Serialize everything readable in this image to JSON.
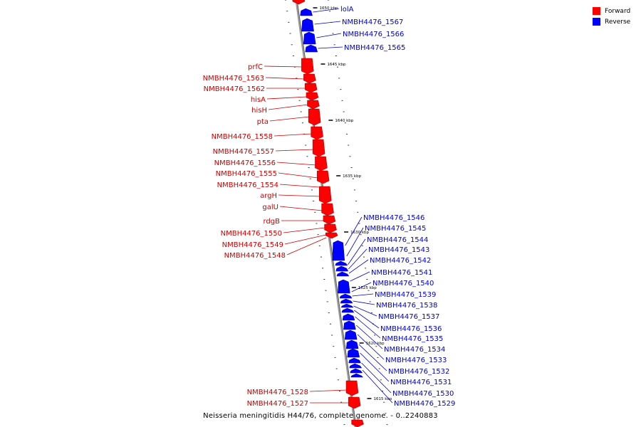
{
  "legend": {
    "forward_label": "Forward",
    "reverse_label": "Reverse",
    "forward_color": "#ff0000",
    "reverse_color": "#0000ff"
  },
  "caption": "Neisseria meningitidis H44/76, complete genome. - 0..2240883",
  "colors": {
    "forward": "#ff0000",
    "reverse": "#0000ff",
    "label_forward": "#cc0000",
    "label_reverse": "#0000cc",
    "backbone": "#888888"
  },
  "ticks": [
    "1650 kbp",
    "1645 kbp",
    "1640 kbp",
    "1635 kbp",
    "1630 kbp",
    "1625 kbp",
    "1620 kbp",
    "1615 kbp"
  ],
  "forward_genes": [
    "prfC",
    "NMBH4476_1563",
    "NMBH4476_1562",
    "hisA",
    "hisH",
    "pta",
    "NMBH4476_1558",
    "NMBH4476_1557",
    "NMBH4476_1556",
    "NMBH4476_1555",
    "NMBH4476_1554",
    "argH",
    "galU",
    "rdgB",
    "NMBH4476_1550",
    "NMBH4476_1549",
    "NMBH4476_1548",
    "NMBH4476_1528",
    "NMBH4476_1527"
  ],
  "reverse_genes": [
    "lolA",
    "NMBH4476_1567",
    "NMBH4476_1566",
    "NMBH4476_1565",
    "NMBH4476_1546",
    "NMBH4476_1545",
    "NMBH4476_1544",
    "NMBH4476_1543",
    "NMBH4476_1542",
    "NMBH4476_1541",
    "NMBH4476_1540",
    "NMBH4476_1539",
    "NMBH4476_1538",
    "NMBH4476_1537",
    "NMBH4476_1536",
    "NMBH4476_1535",
    "NMBH4476_1534",
    "NMBH4476_1533",
    "NMBH4476_1532",
    "NMBH4476_1531",
    "NMBH4476_1530",
    "NMBH4476_1529"
  ]
}
